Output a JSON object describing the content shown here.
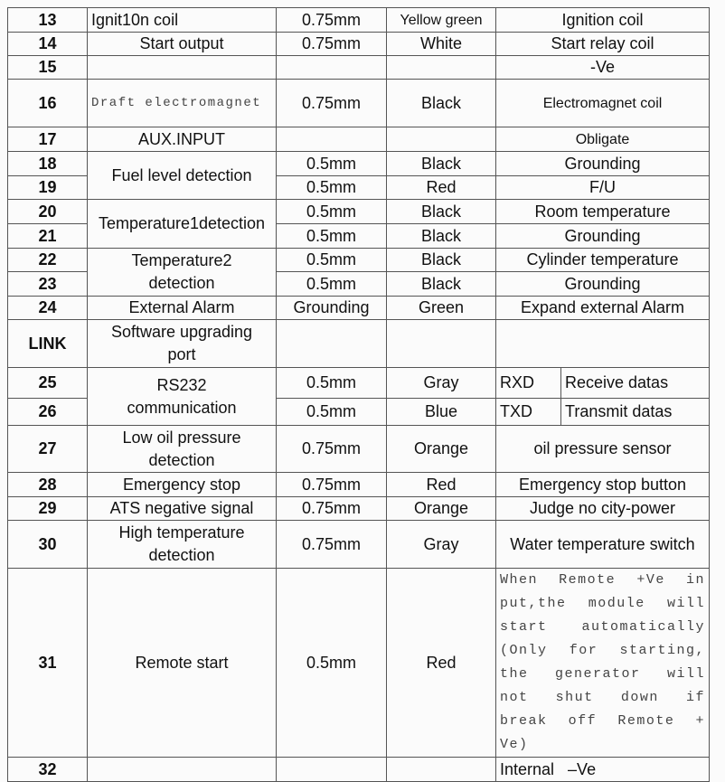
{
  "rows": {
    "r13": {
      "no": "13",
      "func": "Ignit10n coil",
      "size": "0.75mm",
      "color": "Yellow green",
      "desc": "Ignition coil"
    },
    "r14": {
      "no": "14",
      "func": "Start output",
      "size": "0.75mm",
      "color": "White",
      "desc": "Start relay coil"
    },
    "r15": {
      "no": "15",
      "func": "",
      "size": "",
      "color": "",
      "desc": "-Ve"
    },
    "r16": {
      "no": "16",
      "func": "Draft    electromagnet",
      "size": "0.75mm",
      "color": "Black",
      "desc": "Electromagnet coil"
    },
    "r17": {
      "no": "17",
      "func": "AUX.INPUT",
      "size": "",
      "color": "",
      "desc": "Obligate"
    },
    "r18": {
      "no": "18",
      "func": "Fuel level detection",
      "size": "0.5mm",
      "color": "Black",
      "desc": "Grounding"
    },
    "r19": {
      "no": "19",
      "size": "0.5mm",
      "color": "Red",
      "desc": "F/U"
    },
    "r20": {
      "no": "20",
      "func": "Temperature1detection",
      "size": "0.5mm",
      "color": "Black",
      "desc": "Room temperature"
    },
    "r21": {
      "no": "21",
      "size": "0.5mm",
      "color": "Black",
      "desc": "Grounding"
    },
    "r22": {
      "no": "22",
      "func": "Temperature2 detection",
      "size": "0.5mm",
      "color": "Black",
      "desc": "Cylinder temperature"
    },
    "r23": {
      "no": "23",
      "size": "0.5mm",
      "color": "Black",
      "desc": "Grounding"
    },
    "r24": {
      "no": "24",
      "func": "External Alarm",
      "size": "Grounding",
      "color": "Green",
      "desc": "Expand external Alarm"
    },
    "link": {
      "no": "LINK",
      "func": "Software upgrading port",
      "size": "",
      "color": "",
      "desc": ""
    },
    "r25": {
      "no": "25",
      "func": "RS232 communication",
      "size": "0.5mm",
      "color": "Gray",
      "signal": "RXD",
      "desc": "Receive datas"
    },
    "r26": {
      "no": "26",
      "size": "0.5mm",
      "color": "Blue",
      "signal": "TXD",
      "desc": "Transmit datas"
    },
    "r27": {
      "no": "27",
      "func": "Low oil pressure detection",
      "size": "0.75mm",
      "color": "Orange",
      "desc": "oil pressure sensor"
    },
    "r28": {
      "no": "28",
      "func": "Emergency stop",
      "size": "0.75mm",
      "color": "Red",
      "desc": "Emergency stop button"
    },
    "r29": {
      "no": "29",
      "func": "ATS negative signal",
      "size": "0.75mm",
      "color": "Orange",
      "desc": "Judge no city-power"
    },
    "r30": {
      "no": "30",
      "func": "High temperature detection",
      "size": "0.75mm",
      "color": "Gray",
      "desc": "Water temperature switch"
    },
    "r31": {
      "no": "31",
      "func": "Remote start",
      "size": "0.5mm",
      "color": "Red",
      "desc": "When  Remote  +Ve  input,the  module  will  start  automatically (Only  for  starting,the  generator  will  not  shut  down  if  break  off  Remote  +Ve)"
    },
    "r32": {
      "no": "32",
      "func": "",
      "size": "",
      "color": "",
      "desc": "Internal   –Ve"
    }
  }
}
